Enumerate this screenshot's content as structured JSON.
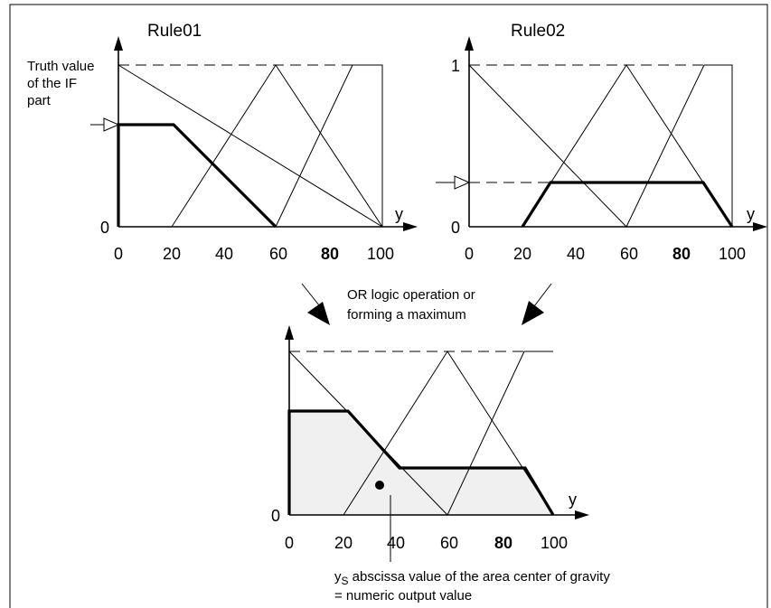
{
  "rule01": {
    "title": "Rule01",
    "truth_label_lines": [
      "Truth value",
      "of the IF",
      "part"
    ],
    "zero": "0",
    "y_axis": "y",
    "ticks": [
      "0",
      "20",
      "40",
      "60",
      "80",
      "100"
    ]
  },
  "rule02": {
    "title": "Rule02",
    "one": "1",
    "zero": "0",
    "y_axis": "y",
    "ticks": [
      "0",
      "20",
      "40",
      "60",
      "80",
      "100"
    ]
  },
  "or_operation": {
    "lines": [
      "OR logic operation or",
      "forming a maximum"
    ]
  },
  "result": {
    "zero": "0",
    "y_axis": "y",
    "ticks": [
      "0",
      "20",
      "40",
      "60",
      "80",
      "100"
    ],
    "ys_symbol": "y",
    "ys_subscript": "S",
    "ys_text": " abscissa value of the area center of gravity",
    "output_text": "= numeric output value"
  }
}
